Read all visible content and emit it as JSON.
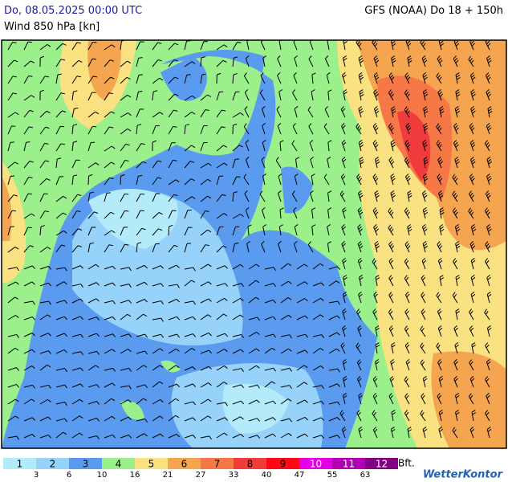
{
  "header": {
    "datetime": "Do, 08.05.2025 00:00 UTC",
    "parameter": "Wind 850 hPa [kn]",
    "model": "GFS (NOAA) Do 18 + 150h"
  },
  "legend": {
    "classes": [
      {
        "label": "1",
        "color": "#b4ebfa"
      },
      {
        "label": "2",
        "color": "#96d2fa"
      },
      {
        "label": "3",
        "color": "#5a9bf0"
      },
      {
        "label": "4",
        "color": "#9bf08c"
      },
      {
        "label": "5",
        "color": "#fae182"
      },
      {
        "label": "6",
        "color": "#f5a550"
      },
      {
        "label": "7",
        "color": "#f57846"
      },
      {
        "label": "8",
        "color": "#f03c3c"
      },
      {
        "label": "9",
        "color": "#ff0a14"
      },
      {
        "label": "10",
        "color": "#e600e6"
      },
      {
        "label": "11",
        "color": "#b400b4"
      },
      {
        "label": "12",
        "color": "#820082"
      }
    ],
    "thresholds": [
      "3",
      "6",
      "10",
      "16",
      "21",
      "27",
      "33",
      "40",
      "47",
      "55",
      "63"
    ],
    "unit": "Bft."
  },
  "logo": "WetterKontor"
}
